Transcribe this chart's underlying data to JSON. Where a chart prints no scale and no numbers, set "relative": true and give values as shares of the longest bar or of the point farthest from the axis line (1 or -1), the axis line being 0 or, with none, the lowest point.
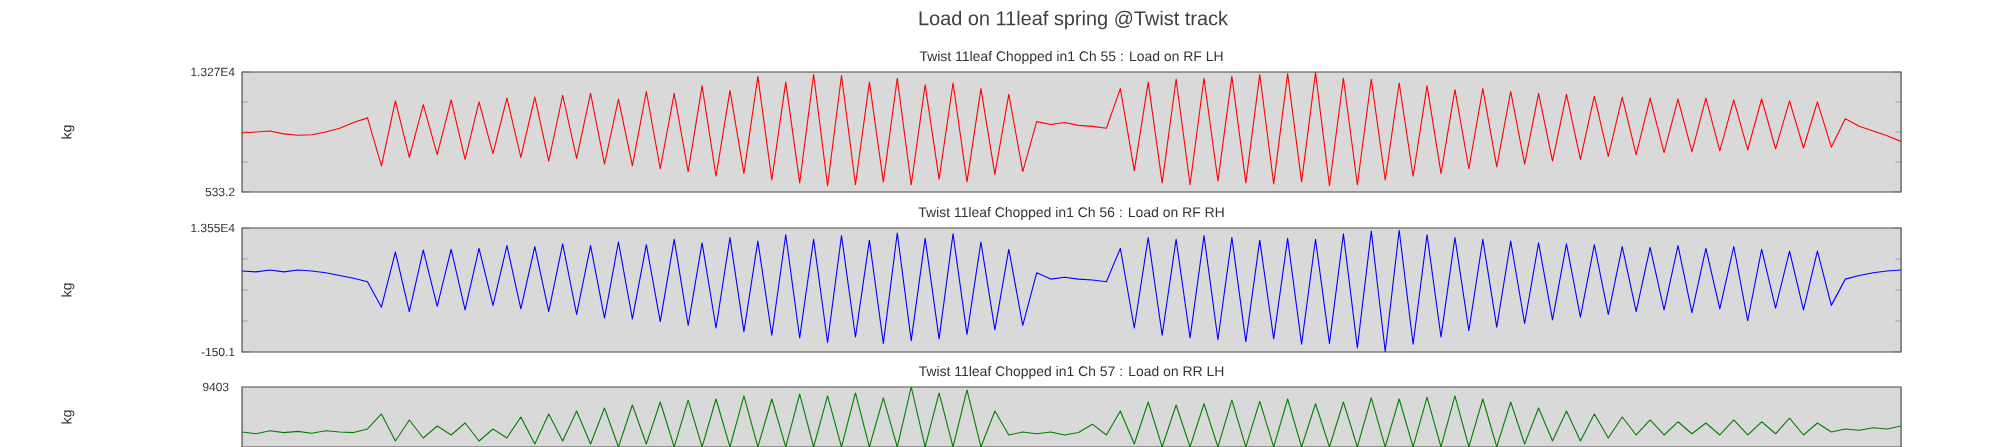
{
  "chart_data": [
    {
      "type": "line",
      "title": "Load on 11leaf spring @Twist track",
      "subtitle": "Twist  11leaf  Chopped  in1   Ch 55 : Load on RF  LH",
      "ylabel": "kg",
      "categories": [
        null,
        null,
        null,
        null,
        null,
        null,
        null,
        null,
        null,
        null,
        null,
        null,
        null,
        null,
        null,
        null,
        null,
        null,
        null,
        null,
        null,
        null,
        null,
        null,
        null,
        null,
        null,
        null,
        null,
        null,
        null,
        null,
        null,
        null,
        null,
        null,
        null,
        null,
        null,
        null,
        null,
        null,
        null,
        null,
        null,
        null,
        null,
        null,
        null,
        null,
        null,
        null,
        null,
        null,
        null,
        null,
        null,
        null,
        null,
        null,
        null,
        null,
        null,
        null,
        null,
        null,
        null,
        null,
        null,
        null,
        null,
        null,
        null,
        null,
        null,
        null,
        null,
        null,
        null,
        null,
        null,
        null,
        null,
        null,
        null,
        null,
        null,
        null,
        null,
        null,
        null,
        null,
        null,
        null,
        null,
        null,
        null,
        null,
        null,
        null,
        null,
        null,
        null,
        null,
        null,
        null,
        null,
        null,
        null,
        null,
        null,
        null,
        null,
        null,
        null,
        null,
        null,
        null,
        null,
        null
      ],
      "series": [
        {
          "color": "#ff0000",
          "values": [
            6800,
            6900,
            7000,
            6700,
            6550,
            6600,
            6900,
            7300,
            7900,
            8400,
            3300,
            10200,
            4200,
            9800,
            4500,
            10300,
            4000,
            10100,
            4600,
            10500,
            4200,
            10600,
            3800,
            10800,
            4100,
            11000,
            3500,
            10400,
            3300,
            11200,
            3000,
            11000,
            2700,
            11800,
            2200,
            11300,
            2500,
            12800,
            1800,
            12200,
            1500,
            13000,
            1200,
            12900,
            1300,
            12200,
            1600,
            12600,
            1300,
            11900,
            1900,
            12100,
            1600,
            11500,
            2400,
            10900,
            2700,
            8000,
            7700,
            7900,
            7600,
            7500,
            7300,
            11500,
            2800,
            12200,
            1500,
            12500,
            1300,
            12600,
            1700,
            12800,
            1500,
            13000,
            1400,
            13100,
            1600,
            13200,
            1200,
            12600,
            1300,
            12500,
            1800,
            12100,
            2200,
            11800,
            2500,
            11400,
            3000,
            11500,
            3200,
            11200,
            3500,
            11000,
            3800,
            10900,
            4000,
            10700,
            4300,
            10600,
            4500,
            10500,
            4700,
            10400,
            4800,
            10500,
            4900,
            10300,
            5000,
            10400,
            5100,
            10200,
            5200,
            10100,
            5300,
            8300,
            7500,
            7000,
            6500,
            5900
          ]
        }
      ],
      "ylim": [
        533.2,
        13270
      ],
      "yticks": [
        533.2,
        {
          "value": 13270,
          "label": "1.327E4"
        }
      ],
      "tick_labels": "y"
    },
    {
      "type": "line",
      "subtitle": "Twist  11leaf  Chopped  in1   Ch 56 : Load on RF  RH",
      "ylabel": "kg",
      "categories": [
        null,
        null,
        null,
        null,
        null,
        null,
        null,
        null,
        null,
        null,
        null,
        null,
        null,
        null,
        null,
        null,
        null,
        null,
        null,
        null,
        null,
        null,
        null,
        null,
        null,
        null,
        null,
        null,
        null,
        null,
        null,
        null,
        null,
        null,
        null,
        null,
        null,
        null,
        null,
        null,
        null,
        null,
        null,
        null,
        null,
        null,
        null,
        null,
        null,
        null,
        null,
        null,
        null,
        null,
        null,
        null,
        null,
        null,
        null,
        null,
        null,
        null,
        null,
        null,
        null,
        null,
        null,
        null,
        null,
        null,
        null,
        null,
        null,
        null,
        null,
        null,
        null,
        null,
        null,
        null,
        null,
        null,
        null,
        null,
        null,
        null,
        null,
        null,
        null,
        null,
        null,
        null,
        null,
        null,
        null,
        null,
        null,
        null,
        null,
        null,
        null,
        null,
        null,
        null,
        null,
        null,
        null,
        null,
        null,
        null,
        null,
        null,
        null,
        null,
        null,
        null,
        null,
        null,
        null,
        null
      ],
      "series": [
        {
          "color": "#0000ff",
          "values": [
            8800,
            8700,
            8900,
            8700,
            8900,
            8800,
            8600,
            8300,
            8000,
            7600,
            4800,
            10900,
            4300,
            11100,
            4900,
            11200,
            4500,
            11300,
            5000,
            11600,
            4600,
            11500,
            4300,
            11800,
            4000,
            11600,
            3600,
            12000,
            3500,
            11700,
            3200,
            12300,
            2800,
            11900,
            2500,
            12500,
            2100,
            12100,
            1700,
            12800,
            1400,
            12300,
            900,
            12700,
            1500,
            12200,
            800,
            13000,
            1100,
            12400,
            1300,
            12900,
            1800,
            12000,
            2300,
            11200,
            2800,
            8600,
            7900,
            8100,
            7900,
            7800,
            7600,
            11300,
            2500,
            12500,
            1700,
            12300,
            1400,
            12700,
            1200,
            12500,
            1000,
            12200,
            1300,
            12400,
            700,
            12300,
            800,
            12900,
            300,
            13200,
            -100,
            13300,
            700,
            12800,
            1500,
            12500,
            2200,
            12300,
            2600,
            12100,
            3000,
            11900,
            3400,
            11800,
            3700,
            11700,
            4000,
            11500,
            4300,
            11400,
            4500,
            11600,
            4200,
            11300,
            4600,
            11500,
            3300,
            11200,
            4700,
            11000,
            4500,
            11000,
            5000,
            7900,
            8300,
            8600,
            8800,
            8900
          ]
        }
      ],
      "ylim": [
        -150.1,
        13550
      ],
      "yticks": [
        -150.1,
        {
          "value": 13550,
          "label": "1.355E4"
        }
      ],
      "tick_labels": "y"
    },
    {
      "type": "line",
      "subtitle": "Twist  11leaf  Chopped  in1   Ch 57 : Load on RR  LH",
      "ylabel": "kg",
      "relative": true,
      "annotations": [
        "9403"
      ],
      "categories": [
        null,
        null,
        null,
        null,
        null,
        null,
        null,
        null,
        null,
        null,
        null,
        null,
        null,
        null,
        null,
        null,
        null,
        null,
        null,
        null,
        null,
        null,
        null,
        null,
        null,
        null,
        null,
        null,
        null,
        null,
        null,
        null,
        null,
        null,
        null,
        null,
        null,
        null,
        null,
        null,
        null,
        null,
        null,
        null,
        null,
        null,
        null,
        null,
        null,
        null,
        null,
        null,
        null,
        null,
        null,
        null,
        null,
        null,
        null,
        null,
        null,
        null,
        null,
        null,
        null,
        null,
        null,
        null,
        null,
        null,
        null,
        null,
        null,
        null,
        null,
        null,
        null,
        null,
        null,
        null,
        null,
        null,
        null,
        null,
        null,
        null,
        null,
        null,
        null,
        null,
        null,
        null,
        null,
        null,
        null,
        null,
        null,
        null,
        null,
        null,
        null,
        null,
        null,
        null,
        null,
        null,
        null,
        null,
        null,
        null,
        null,
        null,
        null,
        null,
        null,
        null,
        null,
        null,
        null,
        null
      ],
      "series": [
        {
          "color": "#008000",
          "values": [
            0.25,
            0.22,
            0.27,
            0.24,
            0.26,
            0.23,
            0.27,
            0.25,
            0.24,
            0.3,
            0.55,
            0.1,
            0.45,
            0.15,
            0.35,
            0.2,
            0.4,
            0.1,
            0.3,
            0.15,
            0.5,
            0.05,
            0.55,
            0.1,
            0.6,
            0.05,
            0.65,
            0,
            0.7,
            0.05,
            0.75,
            0,
            0.78,
            0,
            0.8,
            0,
            0.85,
            0,
            0.8,
            0,
            0.88,
            0,
            0.85,
            0,
            0.9,
            0,
            0.82,
            0,
            1.0,
            0,
            0.9,
            0,
            0.95,
            0,
            0.6,
            0.2,
            0.25,
            0.22,
            0.25,
            0.2,
            0.24,
            0.38,
            0.2,
            0.6,
            0.05,
            0.75,
            0,
            0.7,
            0,
            0.72,
            0,
            0.78,
            0,
            0.76,
            0,
            0.8,
            0,
            0.72,
            0,
            0.75,
            0,
            0.82,
            0,
            0.8,
            0,
            0.83,
            0,
            0.85,
            0,
            0.8,
            0,
            0.75,
            0.05,
            0.65,
            0.1,
            0.6,
            0.1,
            0.55,
            0.15,
            0.5,
            0.2,
            0.45,
            0.2,
            0.42,
            0.22,
            0.4,
            0.2,
            0.45,
            0.2,
            0.42,
            0.22,
            0.48,
            0.2,
            0.4,
            0.25,
            0.3,
            0.28,
            0.32,
            0.3,
            0.35
          ]
        }
      ],
      "tick_labels": "y"
    }
  ]
}
